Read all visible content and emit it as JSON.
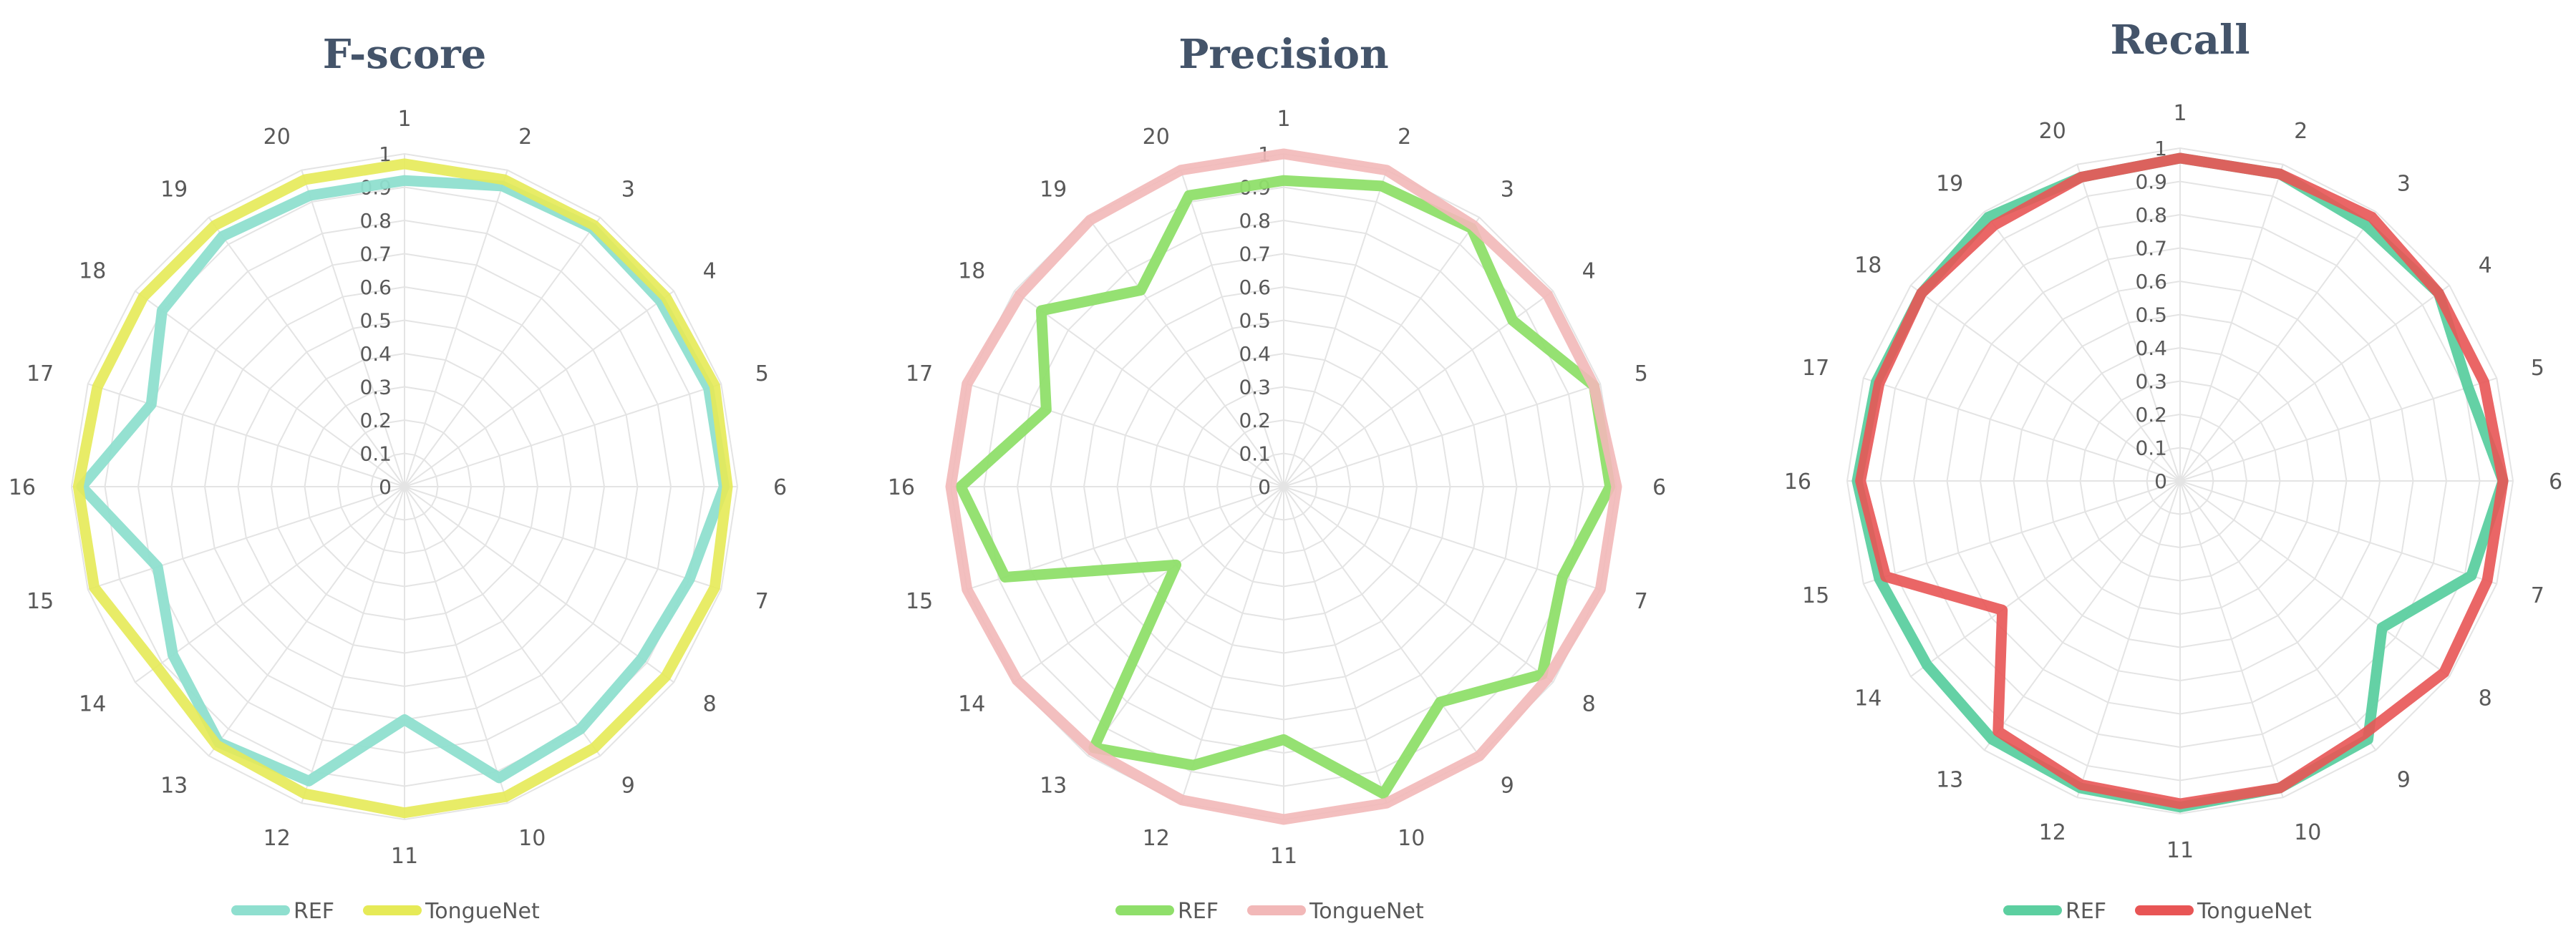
{
  "chart_data": [
    {
      "type": "radar",
      "title": "F-score",
      "categories": [
        "1",
        "2",
        "3",
        "4",
        "5",
        "6",
        "7",
        "8",
        "9",
        "10",
        "11",
        "12",
        "13",
        "14",
        "15",
        "16",
        "17",
        "18",
        "19",
        "20"
      ],
      "ticks": [
        "0",
        "0.1",
        "0.2",
        "0.3",
        "0.4",
        "0.5",
        "0.6",
        "0.7",
        "0.8",
        "0.9",
        "1"
      ],
      "rlim": [
        0,
        1
      ],
      "grid": true,
      "legend_position": "bottom",
      "series": [
        {
          "name": "REF",
          "color": "#8fdfcf",
          "values": [
            0.92,
            0.95,
            0.96,
            0.95,
            0.96,
            0.96,
            0.9,
            0.88,
            0.9,
            0.92,
            0.7,
            0.93,
            0.95,
            0.86,
            0.78,
            0.97,
            0.8,
            0.9,
            0.93,
            0.92
          ]
        },
        {
          "name": "TongueNet",
          "color": "#e6ea57",
          "values": [
            0.97,
            0.97,
            0.97,
            0.97,
            0.98,
            0.97,
            0.98,
            0.97,
            0.97,
            0.98,
            0.98,
            0.97,
            0.96,
            0.92,
            0.98,
            0.98,
            0.97,
            0.97,
            0.97,
            0.97
          ]
        }
      ]
    },
    {
      "type": "radar",
      "title": "Precision",
      "categories": [
        "1",
        "2",
        "3",
        "4",
        "5",
        "6",
        "7",
        "8",
        "9",
        "10",
        "11",
        "12",
        "13",
        "14",
        "15",
        "16",
        "17",
        "18",
        "19",
        "20"
      ],
      "ticks": [
        "0",
        "0.1",
        "0.2",
        "0.3",
        "0.4",
        "0.5",
        "0.6",
        "0.7",
        "0.8",
        "0.9",
        "1"
      ],
      "rlim": [
        0,
        1
      ],
      "grid": true,
      "legend_position": "bottom",
      "series": [
        {
          "name": "REF",
          "color": "#8fdf6a",
          "values": [
            0.92,
            0.95,
            0.96,
            0.85,
            0.98,
            0.98,
            0.88,
            0.96,
            0.8,
            0.97,
            0.76,
            0.88,
            0.97,
            0.4,
            0.88,
            0.97,
            0.75,
            0.9,
            0.73,
            0.92
          ]
        },
        {
          "name": "TongueNet",
          "color": "#f2b8b8",
          "values": [
            1.0,
            1.0,
            0.97,
            0.98,
            0.98,
            1.0,
            1.0,
            0.98,
            1.0,
            1.0,
            1.0,
            0.99,
            0.98,
            0.99,
            1.0,
            1.0,
            1.0,
            0.98,
            0.99,
            1.0
          ]
        }
      ]
    },
    {
      "type": "radar",
      "title": "Recall",
      "categories": [
        "1",
        "2",
        "3",
        "4",
        "5",
        "6",
        "7",
        "8",
        "9",
        "10",
        "11",
        "12",
        "13",
        "14",
        "15",
        "16",
        "17",
        "18",
        "19",
        "20"
      ],
      "ticks": [
        "0",
        "0.1",
        "0.2",
        "0.3",
        "0.4",
        "0.5",
        "0.6",
        "0.7",
        "0.8",
        "0.9",
        "1"
      ],
      "rlim": [
        0,
        1
      ],
      "grid": true,
      "legend_position": "bottom",
      "series": [
        {
          "name": "REF",
          "color": "#5ccfa0",
          "values": [
            0.97,
            0.97,
            0.95,
            0.96,
            0.91,
            0.97,
            0.92,
            0.75,
            0.96,
            0.97,
            0.98,
            0.97,
            0.96,
            0.94,
            0.95,
            0.97,
            0.96,
            0.96,
            0.98,
            0.96
          ]
        },
        {
          "name": "TongueNet",
          "color": "#e85555",
          "values": [
            0.97,
            0.97,
            0.98,
            0.96,
            0.96,
            0.97,
            0.97,
            0.98,
            0.94,
            0.97,
            0.97,
            0.96,
            0.93,
            0.66,
            0.93,
            0.96,
            0.95,
            0.96,
            0.95,
            0.96
          ]
        }
      ]
    }
  ]
}
